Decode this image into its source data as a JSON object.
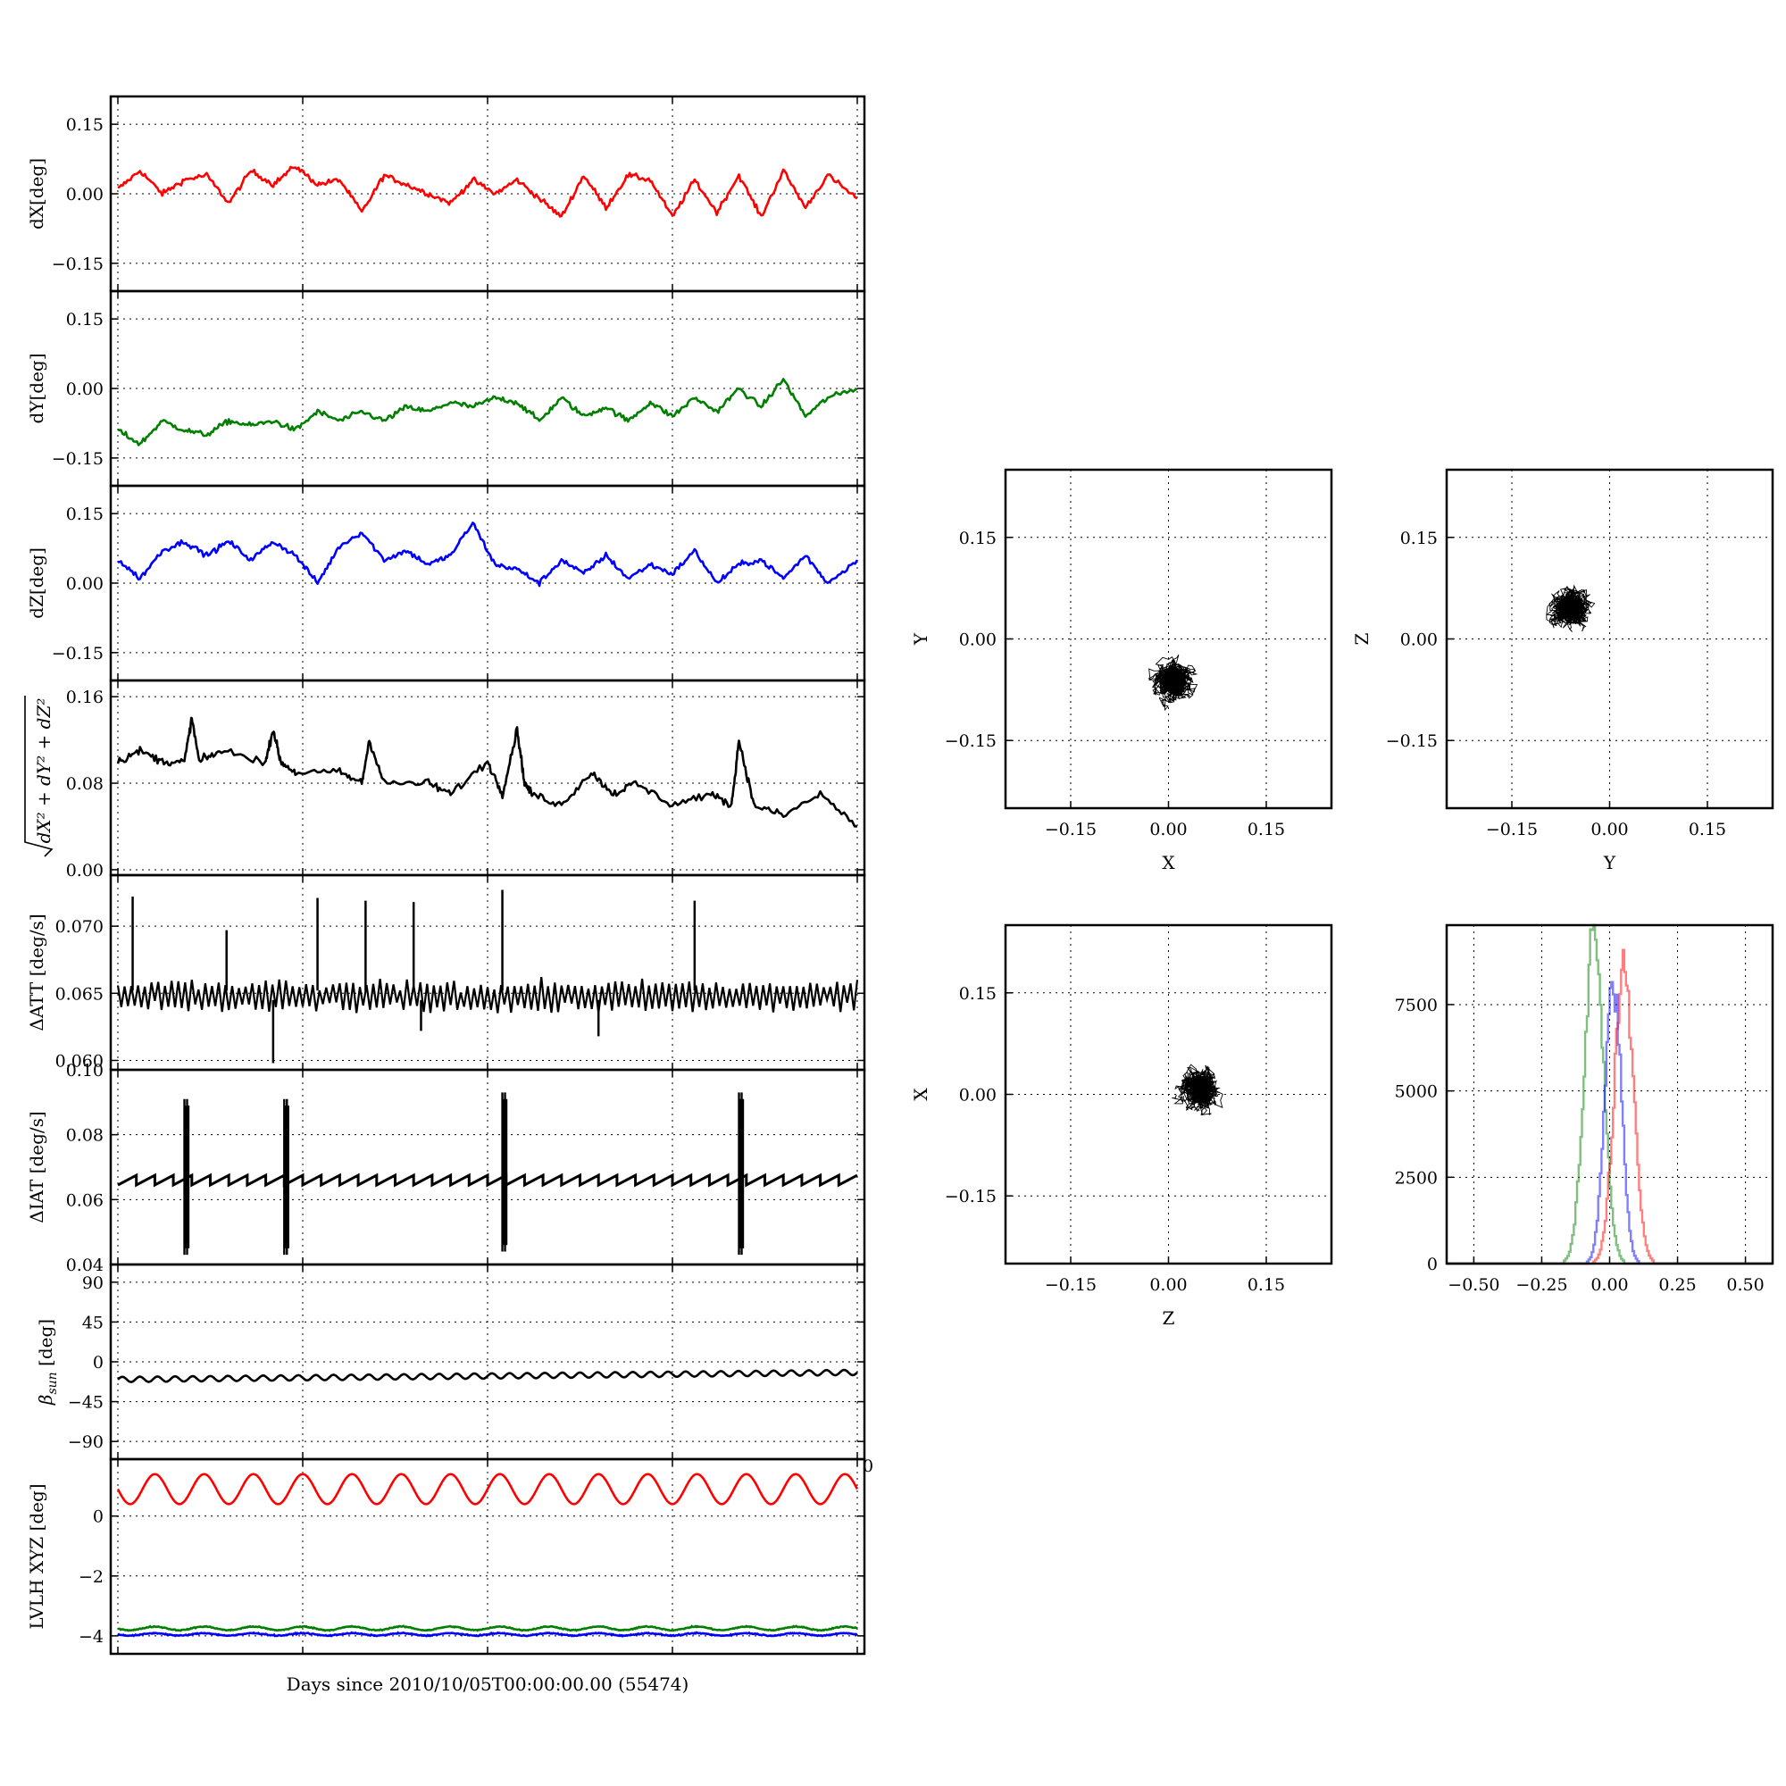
{
  "xlabel": "Days since 2010/10/05T00:00:00.00 (55474)",
  "colors": {
    "x": "#ff0000",
    "y": "#007f00",
    "z": "#0000ff",
    "k": "#000000"
  },
  "chart_data": [
    {
      "id": "dx",
      "type": "line",
      "ylabel": "dX[deg]",
      "xlim": [
        0,
        1
      ],
      "ylim": [
        -0.21,
        0.21
      ],
      "yticks": [
        0.15,
        0.0,
        -0.15
      ],
      "ytick_labels": [
        "0.15",
        "0.00",
        "−0.15"
      ],
      "series": [
        {
          "color": "red",
          "x": [
            0,
            0.03,
            0.06,
            0.09,
            0.12,
            0.15,
            0.18,
            0.21,
            0.24,
            0.27,
            0.3,
            0.33,
            0.36,
            0.39,
            0.42,
            0.45,
            0.48,
            0.51,
            0.54,
            0.57,
            0.6,
            0.63,
            0.66,
            0.69,
            0.72,
            0.75,
            0.78,
            0.81,
            0.84,
            0.87,
            0.9,
            0.93,
            0.96,
            1.0
          ],
          "y": [
            0.01,
            0.05,
            0.0,
            0.03,
            0.04,
            -0.02,
            0.05,
            0.02,
            0.06,
            0.02,
            0.03,
            -0.04,
            0.04,
            0.02,
            0.0,
            -0.02,
            0.03,
            0.0,
            0.03,
            -0.01,
            -0.05,
            0.04,
            -0.03,
            0.04,
            0.03,
            -0.05,
            0.03,
            -0.04,
            0.04,
            -0.05,
            0.05,
            -0.03,
            0.04,
            -0.01
          ]
        }
      ]
    },
    {
      "id": "dy",
      "type": "line",
      "ylabel": "dY[deg]",
      "xlim": [
        0,
        1
      ],
      "ylim": [
        -0.21,
        0.21
      ],
      "yticks": [
        0.15,
        0.0,
        -0.15
      ],
      "ytick_labels": [
        "0.15",
        "0.00",
        "−0.15"
      ],
      "series": [
        {
          "color": "green",
          "x": [
            0,
            0.03,
            0.06,
            0.09,
            0.12,
            0.15,
            0.18,
            0.21,
            0.24,
            0.27,
            0.3,
            0.33,
            0.36,
            0.39,
            0.42,
            0.45,
            0.48,
            0.51,
            0.54,
            0.57,
            0.6,
            0.63,
            0.66,
            0.69,
            0.72,
            0.75,
            0.78,
            0.81,
            0.84,
            0.87,
            0.9,
            0.93,
            0.96,
            1.0
          ],
          "y": [
            -0.09,
            -0.12,
            -0.07,
            -0.09,
            -0.1,
            -0.07,
            -0.08,
            -0.07,
            -0.09,
            -0.05,
            -0.07,
            -0.05,
            -0.07,
            -0.04,
            -0.05,
            -0.03,
            -0.04,
            -0.02,
            -0.03,
            -0.07,
            -0.02,
            -0.06,
            -0.04,
            -0.07,
            -0.03,
            -0.06,
            -0.02,
            -0.05,
            0.0,
            -0.04,
            0.02,
            -0.06,
            -0.02,
            0.0
          ]
        }
      ]
    },
    {
      "id": "dz",
      "type": "line",
      "ylabel": "dZ[deg]",
      "xlim": [
        0,
        1
      ],
      "ylim": [
        -0.21,
        0.21
      ],
      "yticks": [
        0.15,
        0.0,
        -0.15
      ],
      "ytick_labels": [
        "0.15",
        "0.00",
        "−0.15"
      ],
      "series": [
        {
          "color": "blue",
          "x": [
            0,
            0.03,
            0.06,
            0.09,
            0.12,
            0.15,
            0.18,
            0.21,
            0.24,
            0.27,
            0.3,
            0.33,
            0.36,
            0.39,
            0.42,
            0.45,
            0.48,
            0.51,
            0.54,
            0.57,
            0.6,
            0.63,
            0.66,
            0.69,
            0.72,
            0.75,
            0.78,
            0.81,
            0.84,
            0.87,
            0.9,
            0.93,
            0.96,
            1.0
          ],
          "y": [
            0.05,
            0.01,
            0.07,
            0.09,
            0.06,
            0.09,
            0.05,
            0.09,
            0.06,
            0.0,
            0.08,
            0.11,
            0.05,
            0.07,
            0.04,
            0.06,
            0.13,
            0.04,
            0.03,
            0.0,
            0.05,
            0.02,
            0.06,
            0.01,
            0.04,
            0.02,
            0.07,
            0.0,
            0.04,
            0.05,
            0.01,
            0.06,
            0.0,
            0.05
          ]
        }
      ]
    },
    {
      "id": "rss",
      "type": "line",
      "ylabel": "√(dX²+dY²+dZ²)",
      "xlim": [
        0,
        1
      ],
      "ylim": [
        -0.005,
        0.175
      ],
      "yticks": [
        0.16,
        0.08,
        0.0
      ],
      "ytick_labels": [
        "0.16",
        "0.08",
        "0.00"
      ],
      "series": [
        {
          "color": "black",
          "x": [
            0,
            0.03,
            0.06,
            0.09,
            0.1,
            0.11,
            0.14,
            0.2,
            0.21,
            0.22,
            0.24,
            0.3,
            0.33,
            0.34,
            0.36,
            0.42,
            0.45,
            0.5,
            0.52,
            0.54,
            0.55,
            0.56,
            0.6,
            0.64,
            0.67,
            0.7,
            0.75,
            0.8,
            0.83,
            0.84,
            0.86,
            0.9,
            0.95,
            1.0
          ],
          "y": [
            0.1,
            0.11,
            0.1,
            0.1,
            0.14,
            0.1,
            0.11,
            0.1,
            0.13,
            0.1,
            0.09,
            0.09,
            0.08,
            0.12,
            0.08,
            0.08,
            0.07,
            0.1,
            0.07,
            0.13,
            0.08,
            0.07,
            0.06,
            0.09,
            0.07,
            0.08,
            0.06,
            0.07,
            0.06,
            0.12,
            0.06,
            0.05,
            0.07,
            0.04
          ]
        }
      ]
    },
    {
      "id": "datt",
      "type": "line",
      "ylabel": "ΔATT [deg/s]",
      "xlim": [
        0,
        1
      ],
      "ylim": [
        0.0593,
        0.0738
      ],
      "yticks": [
        0.07,
        0.065,
        0.06
      ],
      "ytick_labels": [
        "0.070",
        "0.065",
        "0.060"
      ],
      "series": [
        {
          "color": "black",
          "x": [
            0.0,
            0.02,
            0.04,
            0.07,
            0.09,
            0.11,
            0.13,
            0.15,
            0.17,
            0.19,
            0.21,
            0.23,
            0.25,
            0.27,
            0.29,
            0.31,
            0.33,
            0.35,
            0.37,
            0.39,
            0.41,
            0.43,
            0.45,
            0.47,
            0.49,
            0.51,
            0.53,
            0.55,
            0.57,
            0.59,
            0.61,
            0.63,
            0.65,
            0.67,
            0.69,
            0.71,
            0.73,
            0.75,
            0.77,
            0.79,
            0.81,
            0.83,
            0.85,
            0.87,
            0.89,
            0.91,
            0.93,
            0.95,
            0.97,
            1.0
          ],
          "y": [
            0.0655,
            0.0645,
            0.0655,
            0.0645,
            0.0655,
            0.0645,
            0.0655,
            0.0645,
            0.0656,
            0.0644,
            0.0655,
            0.0645,
            0.0655,
            0.0644,
            0.0656,
            0.0645,
            0.0655,
            0.0645,
            0.0656,
            0.0644,
            0.0656,
            0.0645,
            0.0657,
            0.0644,
            0.0656,
            0.0645,
            0.0656,
            0.0644,
            0.0656,
            0.0645,
            0.0656,
            0.0644,
            0.0657,
            0.0645,
            0.0656,
            0.0644,
            0.0656,
            0.0645,
            0.0656,
            0.0644,
            0.0656,
            0.0645,
            0.0656,
            0.0644,
            0.0656,
            0.0645,
            0.0656,
            0.0644,
            0.0656,
            0.0652
          ]
        }
      ],
      "spikes": {
        "x": [
          0.02,
          0.147,
          0.27,
          0.335,
          0.4,
          0.52,
          0.78
        ],
        "y": [
          0.0722,
          0.0697,
          0.0721,
          0.0719,
          0.0718,
          0.0727,
          0.0719
        ]
      },
      "dips": {
        "x": [
          0.21,
          0.41,
          0.65
        ],
        "y": [
          0.0598,
          0.0622,
          0.0618
        ]
      }
    },
    {
      "id": "diat",
      "type": "line",
      "ylabel": "ΔIAT [deg/s]",
      "xlim": [
        0,
        1
      ],
      "ylim": [
        0.04,
        0.1
      ],
      "yticks": [
        0.1,
        0.08,
        0.06,
        0.04
      ],
      "ytick_labels": [
        "0.10",
        "0.08",
        "0.06",
        "0.04"
      ],
      "series": [
        {
          "color": "black",
          "x": [
            0.0,
            0.08,
            0.08,
            0.16,
            0.16,
            0.24,
            0.24,
            0.32,
            0.32,
            0.4,
            0.4,
            0.48,
            0.48,
            0.56,
            0.56,
            0.64,
            0.64,
            0.72,
            0.72,
            0.8,
            0.8,
            0.88,
            0.88,
            0.96,
            0.96,
            1.0
          ],
          "y": [
            0.064,
            0.068,
            0.064,
            0.068,
            0.064,
            0.068,
            0.064,
            0.068,
            0.064,
            0.068,
            0.064,
            0.068,
            0.064,
            0.068,
            0.064,
            0.068,
            0.064,
            0.068,
            0.064,
            0.068,
            0.064,
            0.068,
            0.064,
            0.068,
            0.064,
            0.067
          ]
        }
      ],
      "bursts": {
        "x": [
          0.09,
          0.225,
          0.52,
          0.84
        ],
        "ymin": [
          0.043,
          0.043,
          0.044,
          0.043
        ],
        "ymax": [
          0.091,
          0.091,
          0.093,
          0.093
        ]
      }
    },
    {
      "id": "beta",
      "type": "line",
      "ylabel": "βsun [deg]",
      "xlim": [
        0,
        1
      ],
      "ylim": [
        -110,
        110
      ],
      "yticks": [
        90,
        45,
        0,
        -45,
        -90
      ],
      "ytick_labels": [
        "90",
        "45",
        "0",
        "−45",
        "−90"
      ],
      "series": [
        {
          "color": "black",
          "x": [
            0,
            1
          ],
          "y_start": -20,
          "y_end": -12,
          "oscillation_amplitude": 3,
          "cycles": 42
        }
      ]
    },
    {
      "id": "lvlh",
      "type": "line",
      "ylabel": "LVLH XYZ [deg]",
      "xlim": [
        0,
        1
      ],
      "ylim": [
        -4.6,
        1.9
      ],
      "yticks": [
        0,
        -2,
        -4
      ],
      "ytick_labels": [
        "0",
        "−2",
        "−4"
      ],
      "series": [
        {
          "color": "red",
          "mean": 0.9,
          "oscillation_amplitude": 0.5,
          "cycles": 15
        },
        {
          "color": "green",
          "mean": -3.75,
          "oscillation_amplitude": 0.06,
          "cycles": 15
        },
        {
          "color": "blue",
          "mean": -3.95,
          "oscillation_amplitude": 0.04,
          "cycles": 15
        }
      ],
      "stray_tick_label": "0"
    },
    {
      "id": "xy",
      "type": "scatter",
      "xlabel": "X",
      "ylabel": "Y",
      "xlim": [
        -0.25,
        0.25
      ],
      "ylim": [
        -0.25,
        0.25
      ],
      "ticks": [
        -0.15,
        0.0,
        0.15
      ],
      "tick_labels": [
        "−0.15",
        "0.00",
        "0.15"
      ],
      "cloud": {
        "center": [
          0.01,
          -0.06
        ],
        "spread": [
          0.05,
          0.05
        ]
      }
    },
    {
      "id": "yz",
      "type": "scatter",
      "xlabel": "Y",
      "ylabel": "Z",
      "xlim": [
        -0.25,
        0.25
      ],
      "ylim": [
        -0.25,
        0.25
      ],
      "ticks": [
        -0.15,
        0.0,
        0.15
      ],
      "tick_labels": [
        "−0.15",
        "0.00",
        "0.15"
      ],
      "cloud": {
        "center": [
          -0.06,
          0.05
        ],
        "spread": [
          0.04,
          0.06
        ]
      }
    },
    {
      "id": "zx",
      "type": "scatter",
      "xlabel": "Z",
      "ylabel": "X",
      "xlim": [
        -0.25,
        0.25
      ],
      "ylim": [
        -0.25,
        0.25
      ],
      "ticks": [
        -0.15,
        0.0,
        0.15
      ],
      "tick_labels": [
        "−0.15",
        "0.00",
        "0.15"
      ],
      "cloud": {
        "center": [
          0.05,
          0.01
        ],
        "spread": [
          0.06,
          0.05
        ]
      }
    },
    {
      "id": "hist",
      "type": "histogram",
      "xlim": [
        -0.6,
        0.6
      ],
      "ylim": [
        0,
        9800
      ],
      "xticks": [
        -0.5,
        -0.25,
        0.0,
        0.25,
        0.5
      ],
      "xtick_labels": [
        "−0.50",
        "−0.25",
        "0.00",
        "0.25",
        "0.50"
      ],
      "yticks": [
        0,
        2500,
        5000,
        7500
      ],
      "ytick_labels": [
        "0",
        "2500",
        "5000",
        "7500"
      ],
      "series": [
        {
          "color": "green",
          "mean": -0.06,
          "sd": 0.035,
          "peak": 9800
        },
        {
          "color": "blue",
          "mean": 0.01,
          "sd": 0.03,
          "peak": 8200
        },
        {
          "color": "red",
          "mean": 0.05,
          "sd": 0.035,
          "peak": 8700
        }
      ]
    }
  ]
}
